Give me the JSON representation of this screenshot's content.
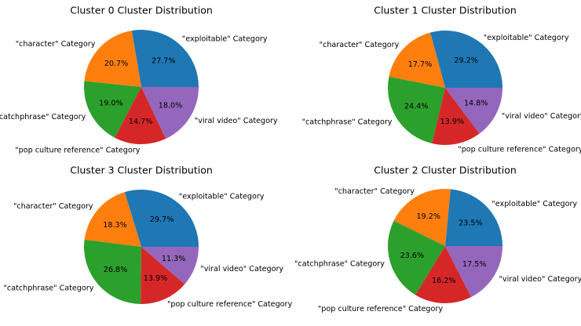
{
  "chart_data": [
    {
      "type": "pie",
      "title": "Cluster 0 Cluster Distribution",
      "categories": [
        "\"exploitable\" Category",
        "\"character\" Category",
        "\"catchphrase\" Category",
        "\"pop culture reference\" Category",
        "\"viral video\" Category"
      ],
      "values": [
        27.7,
        20.7,
        19.0,
        14.7,
        18.0
      ],
      "labels_pct": [
        "27.7%",
        "20.7%",
        "19.0%",
        "14.7%",
        "18.0%"
      ]
    },
    {
      "type": "pie",
      "title": "Cluster 1 Cluster Distribution",
      "categories": [
        "\"exploitable\" Category",
        "\"character\" Category",
        "\"catchphrase\" Category",
        "\"pop culture reference\" Category",
        "\"viral video\" Category"
      ],
      "values": [
        29.2,
        17.7,
        24.4,
        13.9,
        14.8
      ],
      "labels_pct": [
        "29.2%",
        "17.7%",
        "24.4%",
        "13.9%",
        "14.8%"
      ]
    },
    {
      "type": "pie",
      "title": "Cluster 3 Cluster Distribution",
      "categories": [
        "\"exploitable\" Category",
        "\"character\" Category",
        "\"catchphrase\" Category",
        "\"pop culture reference\" Category",
        "\"viral video\" Category"
      ],
      "values": [
        29.7,
        18.3,
        26.8,
        13.9,
        11.3
      ],
      "labels_pct": [
        "29.7%",
        "18.3%",
        "26.8%",
        "13.9%",
        "11.3%"
      ]
    },
    {
      "type": "pie",
      "title": "Cluster 2 Cluster Distribution",
      "categories": [
        "\"exploitable\" Category",
        "\"character\" Category",
        "\"catchphrase\" Category",
        "\"pop culture reference\" Category",
        "\"viral video\" Category"
      ],
      "values": [
        23.5,
        19.2,
        23.6,
        16.2,
        17.5
      ],
      "labels_pct": [
        "23.5%",
        "19.2%",
        "23.6%",
        "16.2%",
        "17.5%"
      ]
    }
  ],
  "colors": [
    "#1f77b4",
    "#ff7f0e",
    "#2ca02c",
    "#d62728",
    "#9467bd"
  ]
}
